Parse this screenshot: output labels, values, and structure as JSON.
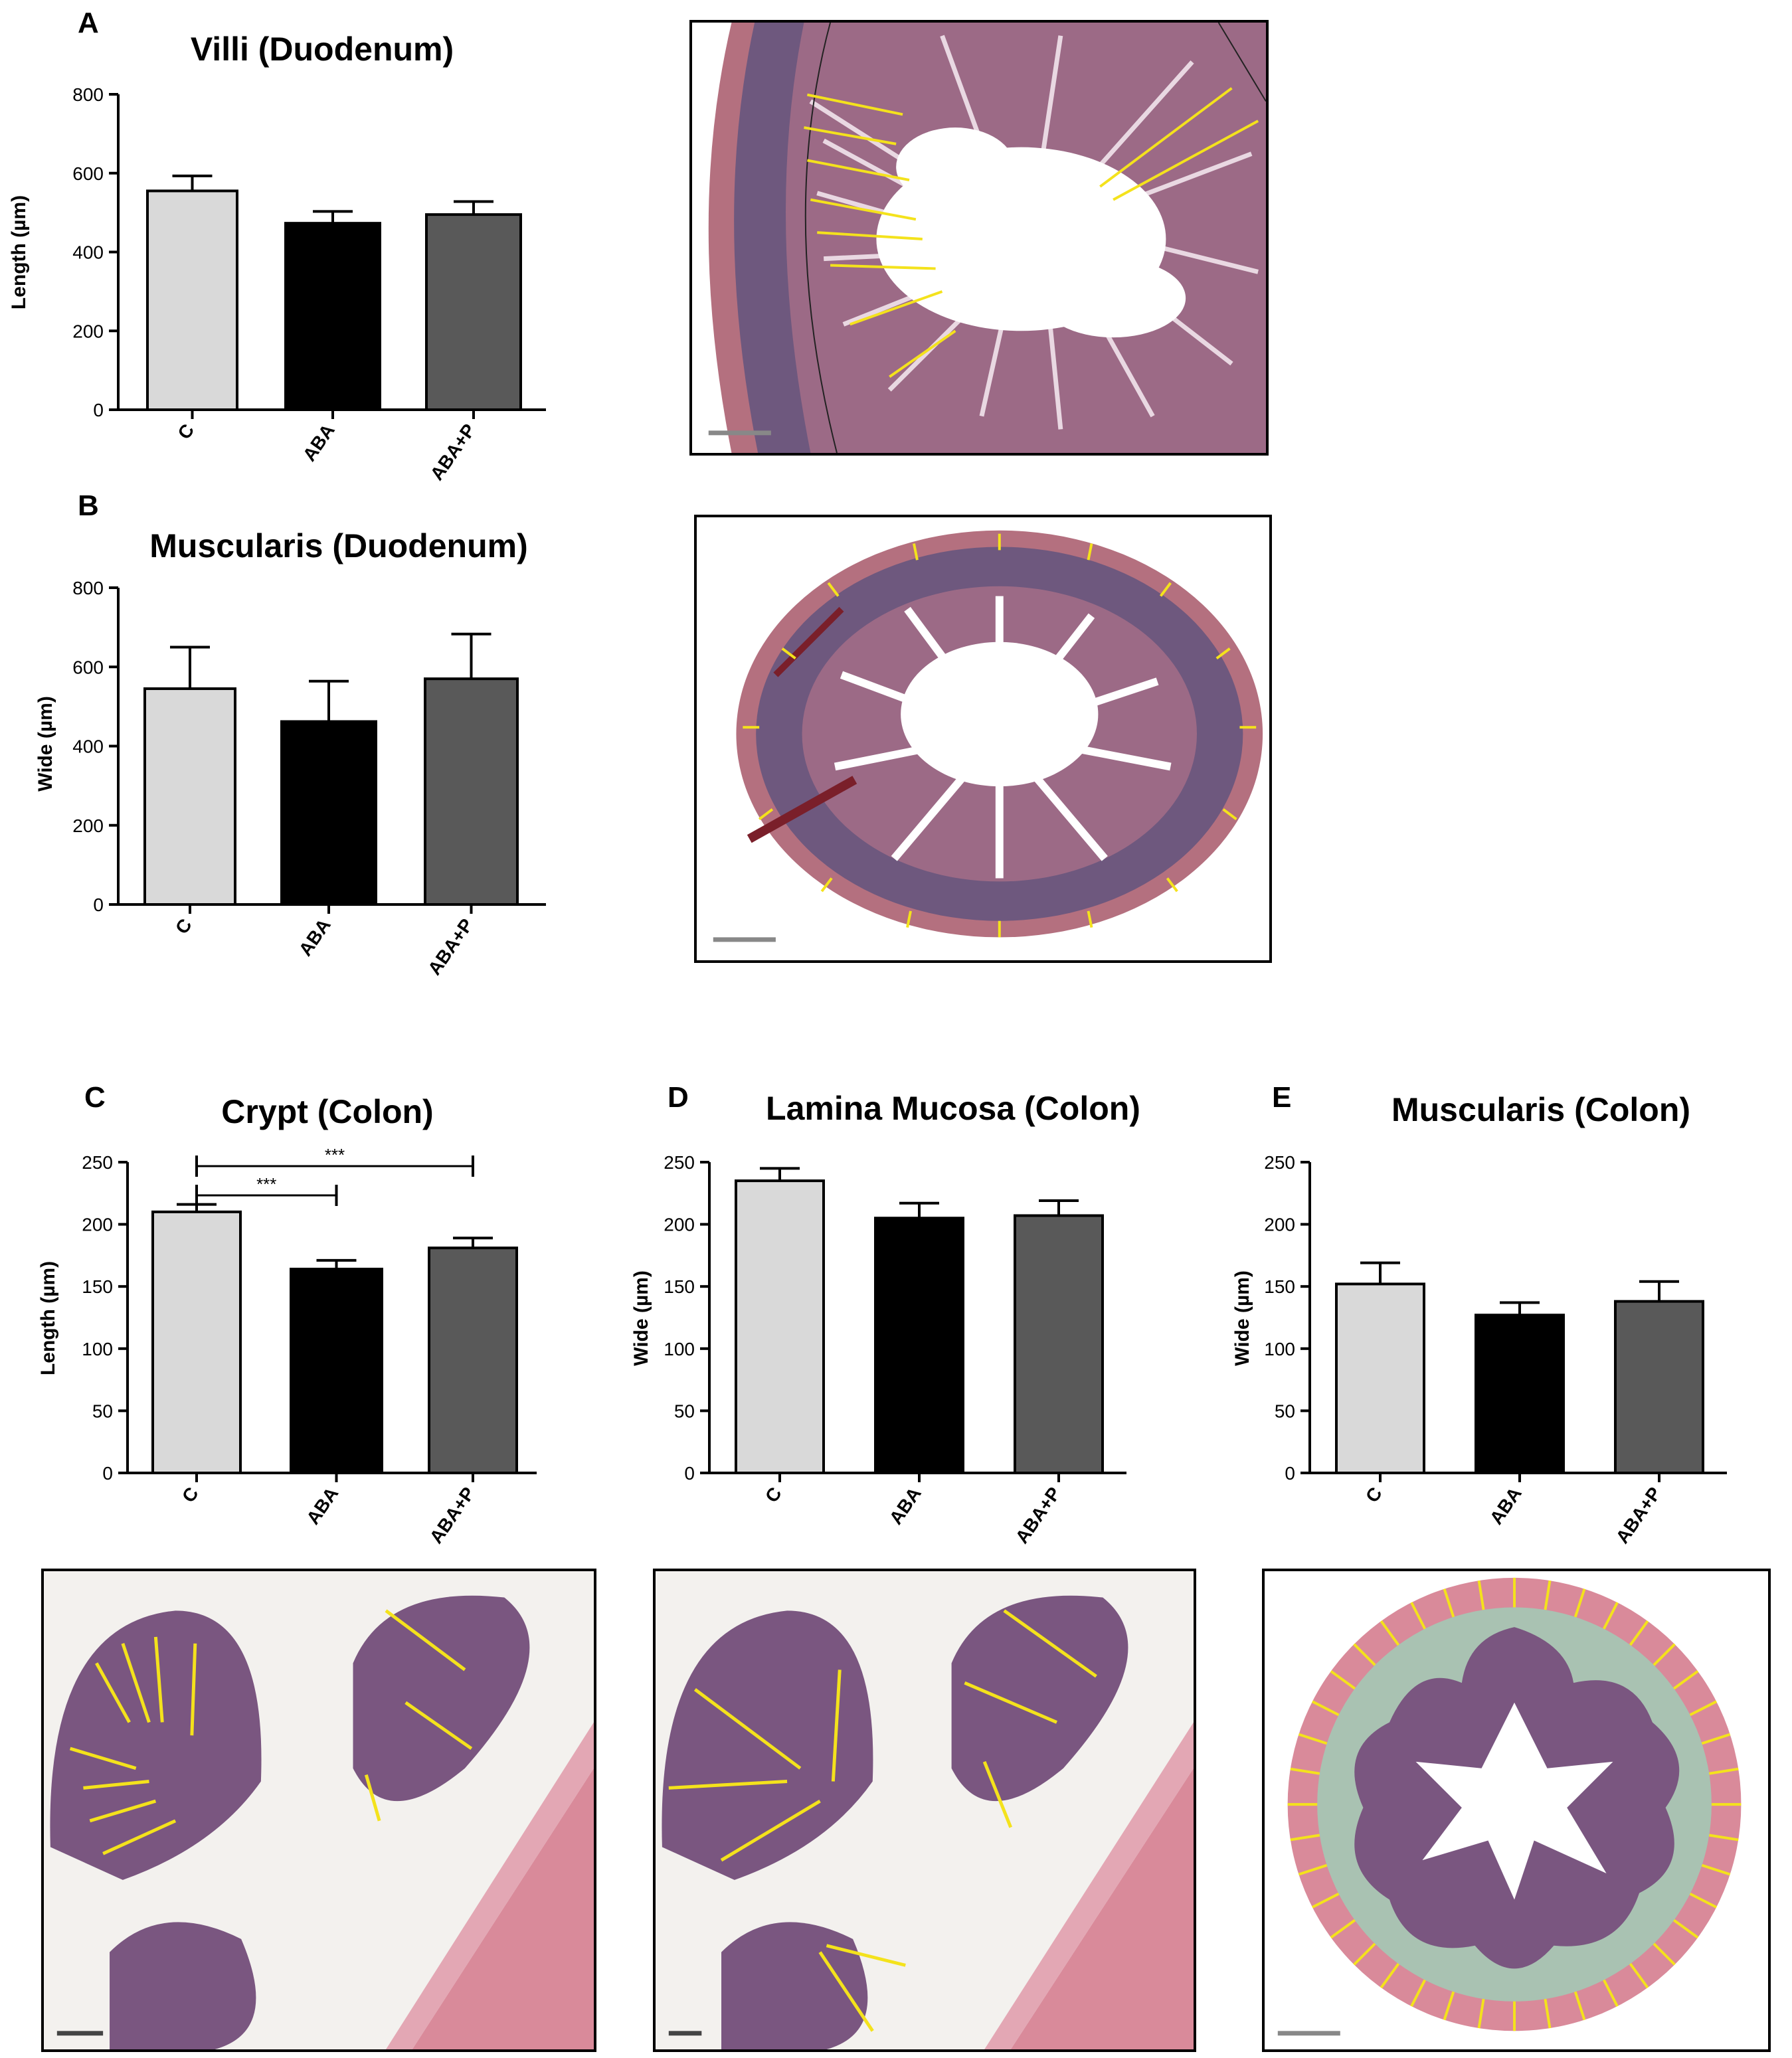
{
  "colors": {
    "C": "#d9d9d9",
    "ABA": "#000000",
    "ABA+P": "#595959",
    "stain": "#b25a72",
    "mucosa": "#6b4f78",
    "measure": "#f4e21c"
  },
  "panels": {
    "A": {
      "letter": "A"
    },
    "B": {
      "letter": "B"
    },
    "C": {
      "letter": "C"
    },
    "D": {
      "letter": "D"
    },
    "E": {
      "letter": "E"
    }
  },
  "chart_data": [
    {
      "id": "A",
      "type": "bar",
      "title": "Villi (Duodenum)",
      "ylabel": "Length (µm)",
      "categories": [
        "C",
        "ABA",
        "ABA+P"
      ],
      "values": [
        555,
        473,
        495
      ],
      "errors": [
        38,
        30,
        33
      ],
      "ylim": [
        0,
        800
      ],
      "yticks": [
        0,
        200,
        400,
        600,
        800
      ]
    },
    {
      "id": "B",
      "type": "bar",
      "title": "Muscularis (Duodenum)",
      "ylabel": "Wide (µm)",
      "categories": [
        "C",
        "ABA",
        "ABA+P"
      ],
      "values": [
        545,
        462,
        570
      ],
      "errors": [
        105,
        102,
        113
      ],
      "ylim": [
        0,
        800
      ],
      "yticks": [
        0,
        200,
        400,
        600,
        800
      ]
    },
    {
      "id": "C",
      "type": "bar",
      "title": "Crypt (Colon)",
      "ylabel": "Length (µm)",
      "categories": [
        "C",
        "ABA",
        "ABA+P"
      ],
      "values": [
        210,
        164,
        181
      ],
      "errors": [
        6,
        7,
        8
      ],
      "ylim": [
        0,
        250
      ],
      "yticks": [
        0,
        50,
        100,
        150,
        200,
        250
      ],
      "significance": [
        {
          "from": "C",
          "to": "ABA",
          "label": "***"
        },
        {
          "from": "C",
          "to": "ABA+P",
          "label": "***"
        }
      ]
    },
    {
      "id": "D",
      "type": "bar",
      "title": "Lamina Mucosa (Colon)",
      "ylabel": "Wide (µm)",
      "categories": [
        "C",
        "ABA",
        "ABA+P"
      ],
      "values": [
        235,
        205,
        207
      ],
      "errors": [
        10,
        12,
        12
      ],
      "ylim": [
        0,
        250
      ],
      "yticks": [
        0,
        50,
        100,
        150,
        200,
        250
      ]
    },
    {
      "id": "E",
      "type": "bar",
      "title": "Muscularis (Colon)",
      "ylabel": "Wide (µm)",
      "categories": [
        "C",
        "ABA",
        "ABA+P"
      ],
      "values": [
        152,
        127,
        138
      ],
      "errors": [
        17,
        10,
        16
      ],
      "ylim": [
        0,
        250
      ],
      "yticks": [
        0,
        50,
        100,
        150,
        200,
        250
      ]
    }
  ]
}
